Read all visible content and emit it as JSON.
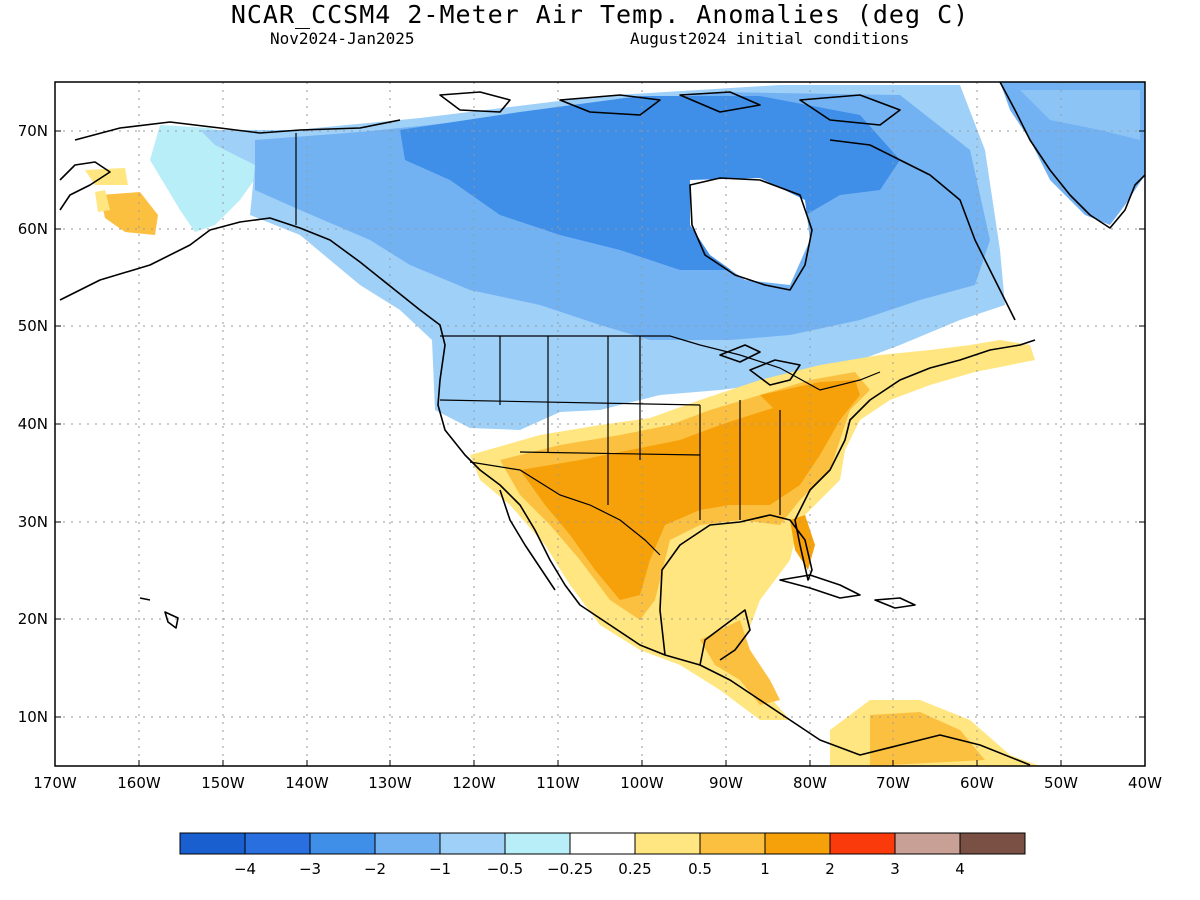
{
  "title": "NCAR_CCSM4 2-Meter Air Temp. Anomalies (deg C)",
  "subtitle_left": "Nov2024-Jan2025",
  "subtitle_right": "August2024 initial conditions",
  "lat_labels": [
    "70N",
    "60N",
    "50N",
    "40N",
    "30N",
    "20N",
    "10N"
  ],
  "lon_labels": [
    "170W",
    "160W",
    "150W",
    "140W",
    "130W",
    "120W",
    "110W",
    "100W",
    "90W",
    "80W",
    "70W",
    "60W",
    "50W",
    "40W"
  ],
  "colorbar": {
    "colors": [
      "#1a5fcf",
      "#2a6fe0",
      "#3f8ee8",
      "#73b2f2",
      "#9fd0f8",
      "#b8eef8",
      "#ffffff",
      "#ffe680",
      "#fcc040",
      "#f7a10a",
      "#fa3a0a",
      "#c8a096",
      "#7a5045"
    ],
    "labels": [
      "−4",
      "−3",
      "−2",
      "−1",
      "−0.5",
      "−0.25",
      "0.25",
      "0.5",
      "1",
      "2",
      "3",
      "4"
    ]
  },
  "map": {
    "lon_range": [
      -170,
      -40
    ],
    "lat_range": [
      5,
      75
    ],
    "features": "North America land outline, US state and Canadian provincial boundaries, shaded 2-meter air temperature anomalies"
  }
}
